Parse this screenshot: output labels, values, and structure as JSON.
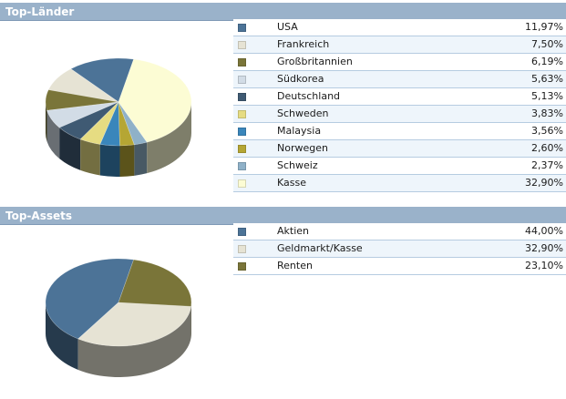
{
  "sections": {
    "countries_title": "Top-Länder",
    "assets_title": "Top-Assets"
  },
  "chart_data": [
    {
      "type": "pie",
      "title": "Top-Länder",
      "categories": [
        "USA",
        "Frankreich",
        "Großbritannien",
        "Südkorea",
        "Deutschland",
        "Schweden",
        "Malaysia",
        "Norwegen",
        "Schweiz",
        "Kasse"
      ],
      "values": [
        11.97,
        7.5,
        6.19,
        5.63,
        5.13,
        3.83,
        3.56,
        2.6,
        2.37,
        32.9
      ],
      "value_labels": [
        "11,97%",
        "7,50%",
        "6,19%",
        "5,63%",
        "5,13%",
        "3,83%",
        "3,56%",
        "2,60%",
        "2,37%",
        "32,90%"
      ],
      "colors": [
        "#4c7397",
        "#e6e3d4",
        "#7a7539",
        "#d2dce6",
        "#3f5a73",
        "#e6dc82",
        "#3a86bb",
        "#b5a634",
        "#8fb1c8",
        "#fcfcd4"
      ],
      "legend_position": "right"
    },
    {
      "type": "pie",
      "title": "Top-Assets",
      "categories": [
        "Aktien",
        "Geldmarkt/Kasse",
        "Renten"
      ],
      "values": [
        44.0,
        32.9,
        23.1
      ],
      "value_labels": [
        "44,00%",
        "32,90%",
        "23,10%"
      ],
      "colors": [
        "#4c7397",
        "#e6e3d4",
        "#7a7539"
      ],
      "legend_position": "right"
    }
  ]
}
